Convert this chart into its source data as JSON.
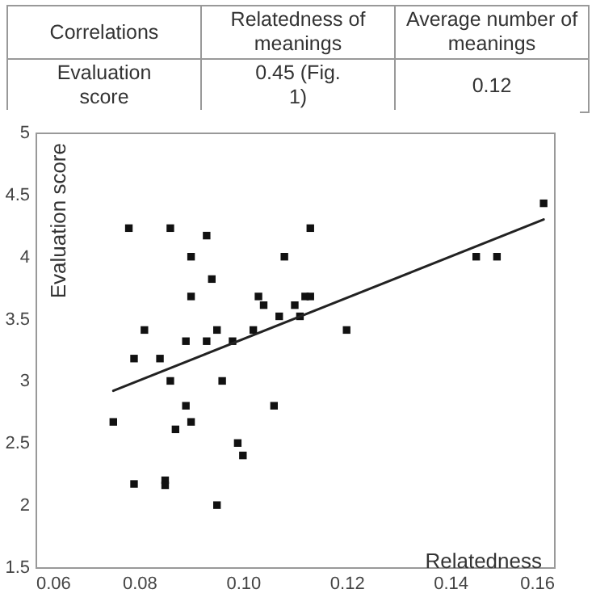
{
  "chart_data": {
    "type": "scatter",
    "xlabel": "Relatedness",
    "ylabel": "Evaluation score",
    "annotations": [
      "Correlations",
      "Relatedness of meanings",
      "Average number of meanings",
      "Evaluation score",
      "0.45 (Fig. 1)",
      "0.12"
    ],
    "xlim": [
      0.06,
      0.16
    ],
    "xticks": [
      {
        "value": 0.06,
        "label": "0.06"
      },
      {
        "value": 0.08,
        "label": "0.08"
      },
      {
        "value": 0.1,
        "label": "0.10"
      },
      {
        "value": 0.12,
        "label": "0.12"
      },
      {
        "value": 0.14,
        "label": "0.14"
      },
      {
        "value": 0.16,
        "label": "0.16"
      }
    ],
    "ylim": [
      1.5,
      5
    ],
    "yticks": [
      1.5,
      2,
      2.5,
      3,
      3.5,
      4,
      4.5,
      5
    ],
    "grid": false,
    "series": [
      {
        "type": "scatter",
        "marker": "square",
        "color": "#111111",
        "x": [
          0.078,
          0.086,
          0.093,
          0.09,
          0.113,
          0.108,
          0.094,
          0.09,
          0.103,
          0.104,
          0.11,
          0.112,
          0.113,
          0.081,
          0.089,
          0.093,
          0.095,
          0.098,
          0.102,
          0.107,
          0.111,
          0.12,
          0.079,
          0.084,
          0.086,
          0.096,
          0.089,
          0.106,
          0.075,
          0.09,
          0.087,
          0.099,
          0.1,
          0.079,
          0.085,
          0.085,
          0.095,
          0.158,
          0.145,
          0.149
        ],
        "values": [
          4.23,
          4.23,
          4.17,
          4.0,
          4.23,
          4.0,
          3.82,
          3.68,
          3.68,
          3.61,
          3.61,
          3.68,
          3.68,
          3.41,
          3.32,
          3.32,
          3.41,
          3.32,
          3.41,
          3.52,
          3.52,
          3.41,
          3.18,
          3.18,
          3.0,
          3.0,
          2.8,
          2.8,
          2.67,
          2.67,
          2.61,
          2.5,
          2.4,
          2.17,
          2.2,
          2.16,
          2.0,
          4.43,
          4.0,
          4.0
        ]
      },
      {
        "type": "line",
        "color": "#222222",
        "x": [
          0.075,
          0.158
        ],
        "values": [
          2.92,
          4.3
        ]
      }
    ]
  }
}
